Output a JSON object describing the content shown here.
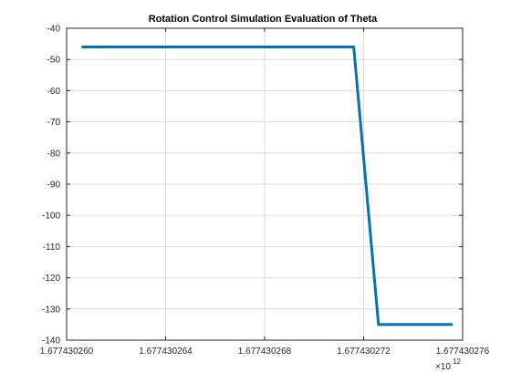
{
  "chart_data": {
    "type": "line",
    "title": "Rotation Control Simulation Evaluation of Theta",
    "xlabel": "",
    "ylabel": "",
    "x_multiplier": "×10",
    "x_exponent": "12",
    "xlim": [
      1.67743026,
      1.677430276
    ],
    "ylim": [
      -140,
      -40
    ],
    "xticks": [
      1.67743026,
      1.677430264,
      1.677430268,
      1.677430272,
      1.677430276
    ],
    "xtick_labels": [
      "1.677430260",
      "1.677430264",
      "1.677430268",
      "1.677430272",
      "1.677430276"
    ],
    "yticks": [
      -40,
      -50,
      -60,
      -70,
      -80,
      -90,
      -100,
      -110,
      -120,
      -130,
      -140
    ],
    "ytick_labels": [
      "-40",
      "-50",
      "-60",
      "-70",
      "-80",
      "-90",
      "-100",
      "-110",
      "-120",
      "-130",
      "-140"
    ],
    "grid": true,
    "series": [
      {
        "x": [
          1.6774302606,
          1.6774302716,
          1.6774302726,
          1.6774302756
        ],
        "y": [
          -46,
          -46,
          -135,
          -135
        ],
        "color": "#0072BD"
      }
    ]
  }
}
